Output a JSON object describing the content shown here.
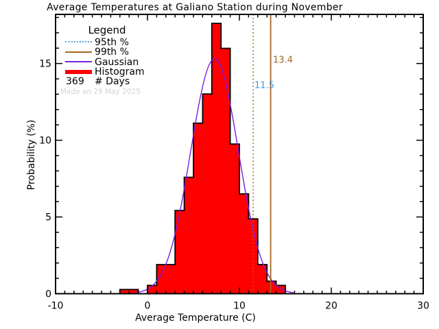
{
  "chart": {
    "title": "Average Temperatures at Galiano Station during November",
    "x_axis_label": "Average Temperature (C)",
    "y_axis_label": "Probability (%)",
    "made_on": "Made on 29 May 2025",
    "legend": {
      "title": "Legend",
      "items": [
        {
          "label": "95th %",
          "sample_style": "dotted-line"
        },
        {
          "label": "99th %",
          "sample_style": "solid-line"
        },
        {
          "label": "Gaussian",
          "sample_style": "solid-line"
        },
        {
          "label": "Histogram",
          "sample_style": "filled-bar"
        }
      ],
      "days_count": "369",
      "days_label": "# Days"
    },
    "annotations": {
      "p95_label": "11.5",
      "p99_label": "13.4"
    }
  },
  "chart_data": {
    "type": "bar",
    "subtype": "histogram_with_gaussian_fit",
    "title": "Average Temperatures at Galiano Station during November",
    "xlabel": "Average Temperature (C)",
    "ylabel": "Probability (%)",
    "xlim": [
      -10,
      30
    ],
    "ylim": [
      0,
      18.2
    ],
    "x_major_ticks": [
      -10,
      0,
      10,
      20,
      30
    ],
    "x_minor_step": 1,
    "y_major_ticks": [
      0,
      5,
      10,
      15
    ],
    "y_minor_step": 1,
    "grid": false,
    "legend_position": "top-left",
    "total_days": 369,
    "bin_width_c": 1,
    "bin_left_edges_c": [
      -3,
      -2,
      -1,
      0,
      1,
      2,
      3,
      4,
      5,
      6,
      7,
      8,
      9,
      10,
      11,
      12,
      13,
      14
    ],
    "bin_day_counts": [
      1,
      1,
      0,
      2,
      7,
      7,
      20,
      28,
      41,
      48,
      65,
      59,
      36,
      24,
      18,
      7,
      3,
      2
    ],
    "bin_probabilities_pct": [
      0.27,
      0.27,
      0,
      0.54,
      1.9,
      1.9,
      5.42,
      7.59,
      11.11,
      13.01,
      17.62,
      15.99,
      9.76,
      6.5,
      4.88,
      1.9,
      0.81,
      0.54
    ],
    "gaussian_fit": {
      "mean_c": 7.3,
      "sigma_c": 2.6,
      "peak_pct": 15.3,
      "draw_range_c": [
        -1.3,
        15.9
      ]
    },
    "percentile_lines": {
      "p95_c": 11.5,
      "p99_c": 13.4
    },
    "colors": {
      "histogram_fill": "#ff0000",
      "histogram_outline": "#000000",
      "gaussian_line": "#7a1fe0",
      "percentile_95_line": "#a3661f",
      "percentile_95_label": "#3d96e6",
      "percentile_99_line": "#a3661f",
      "percentile_99_label": "#a3661f",
      "legend_95_sample": "#4f9fdf",
      "axis": "#000000",
      "made_on_text": "#d2d2d2",
      "background": "#ffffff"
    }
  }
}
